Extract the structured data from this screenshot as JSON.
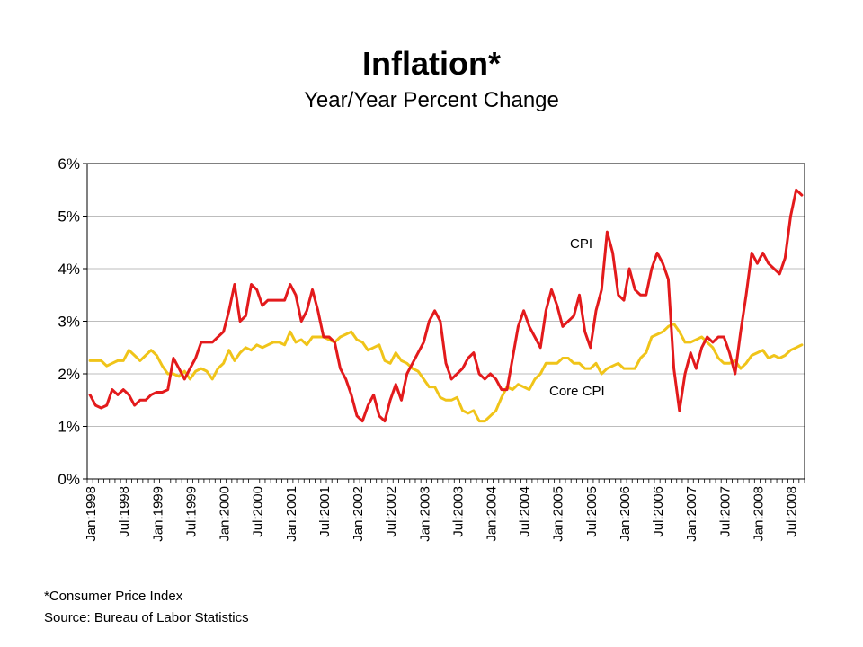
{
  "page": {
    "title": "Inflation*",
    "subtitle": "Year/Year Percent Change",
    "footnote": "*Consumer Price Index",
    "source": "Source:  Bureau of Labor Statistics"
  },
  "chart_data": {
    "type": "line",
    "title": "Inflation*",
    "subtitle": "Year/Year Percent Change",
    "xlabel": "",
    "ylabel": "",
    "ylim": [
      0,
      6
    ],
    "y_ticks": [
      "0%",
      "1%",
      "2%",
      "3%",
      "4%",
      "5%",
      "6%"
    ],
    "x_tick_labels": [
      "Jan:1998",
      "Jul:1998",
      "Jan:1999",
      "Jul:1999",
      "Jan:2000",
      "Jul:2000",
      "Jan:2001",
      "Jul:2001",
      "Jan:2002",
      "Jul:2002",
      "Jan:2003",
      "Jul:2003",
      "Jan:2004",
      "Jul:2004",
      "Jan:2005",
      "Jul:2005",
      "Jan:2006",
      "Jul:2006",
      "Jan:2007",
      "Jul:2007",
      "Jan:2008",
      "Jul:2008"
    ],
    "x_start": "Jan:1998",
    "x_end": "Aug:2008",
    "grid": true,
    "legend": "none",
    "series": [
      {
        "name": "CPI",
        "color": "#e31a1c",
        "values": [
          1.6,
          1.4,
          1.35,
          1.4,
          1.7,
          1.6,
          1.7,
          1.6,
          1.4,
          1.5,
          1.5,
          1.6,
          1.65,
          1.65,
          1.7,
          2.3,
          2.1,
          1.9,
          2.1,
          2.3,
          2.6,
          2.6,
          2.6,
          2.7,
          2.8,
          3.2,
          3.7,
          3.0,
          3.1,
          3.7,
          3.6,
          3.3,
          3.4,
          3.4,
          3.4,
          3.4,
          3.7,
          3.5,
          3.0,
          3.2,
          3.6,
          3.2,
          2.7,
          2.7,
          2.6,
          2.1,
          1.9,
          1.6,
          1.2,
          1.1,
          1.4,
          1.6,
          1.2,
          1.1,
          1.5,
          1.8,
          1.5,
          2.0,
          2.2,
          2.4,
          2.6,
          3.0,
          3.2,
          3.0,
          2.2,
          1.9,
          2.0,
          2.1,
          2.3,
          2.4,
          2.0,
          1.9,
          2.0,
          1.9,
          1.7,
          1.7,
          2.3,
          2.9,
          3.2,
          2.9,
          2.7,
          2.5,
          3.2,
          3.6,
          3.3,
          2.9,
          3.0,
          3.1,
          3.5,
          2.8,
          2.5,
          3.2,
          3.6,
          4.7,
          4.3,
          3.5,
          3.4,
          4.0,
          3.6,
          3.5,
          3.5,
          4.0,
          4.3,
          4.1,
          3.8,
          2.1,
          1.3,
          2.0,
          2.4,
          2.1,
          2.5,
          2.7,
          2.6,
          2.7,
          2.7,
          2.4,
          2.0,
          2.8,
          3.5,
          4.3,
          4.1,
          4.3,
          4.1,
          4.0,
          3.9,
          4.2,
          5.0,
          5.5,
          5.4
        ]
      },
      {
        "name": "Core CPI",
        "color": "#f0c419",
        "values": [
          2.25,
          2.25,
          2.25,
          2.15,
          2.2,
          2.25,
          2.25,
          2.45,
          2.35,
          2.25,
          2.35,
          2.45,
          2.35,
          2.15,
          2.0,
          2.0,
          1.95,
          2.05,
          1.9,
          2.05,
          2.1,
          2.05,
          1.9,
          2.1,
          2.2,
          2.45,
          2.25,
          2.4,
          2.5,
          2.45,
          2.55,
          2.5,
          2.55,
          2.6,
          2.6,
          2.55,
          2.8,
          2.6,
          2.65,
          2.55,
          2.7,
          2.7,
          2.7,
          2.65,
          2.6,
          2.7,
          2.75,
          2.8,
          2.65,
          2.6,
          2.45,
          2.5,
          2.55,
          2.25,
          2.2,
          2.4,
          2.25,
          2.2,
          2.1,
          2.05,
          1.9,
          1.75,
          1.75,
          1.55,
          1.5,
          1.5,
          1.55,
          1.3,
          1.25,
          1.3,
          1.1,
          1.1,
          1.2,
          1.3,
          1.55,
          1.75,
          1.7,
          1.8,
          1.75,
          1.7,
          1.9,
          2.0,
          2.2,
          2.2,
          2.2,
          2.3,
          2.3,
          2.2,
          2.2,
          2.1,
          2.1,
          2.2,
          2.0,
          2.1,
          2.15,
          2.2,
          2.1,
          2.1,
          2.1,
          2.3,
          2.4,
          2.7,
          2.75,
          2.8,
          2.9,
          2.95,
          2.8,
          2.6,
          2.6,
          2.65,
          2.7,
          2.6,
          2.5,
          2.3,
          2.2,
          2.2,
          2.25,
          2.1,
          2.2,
          2.35,
          2.4,
          2.45,
          2.3,
          2.35,
          2.3,
          2.35,
          2.45,
          2.5,
          2.55
        ]
      }
    ],
    "annotations": [
      {
        "text": "CPI",
        "series": "CPI"
      },
      {
        "text": "Core CPI",
        "series": "Core CPI"
      }
    ]
  }
}
